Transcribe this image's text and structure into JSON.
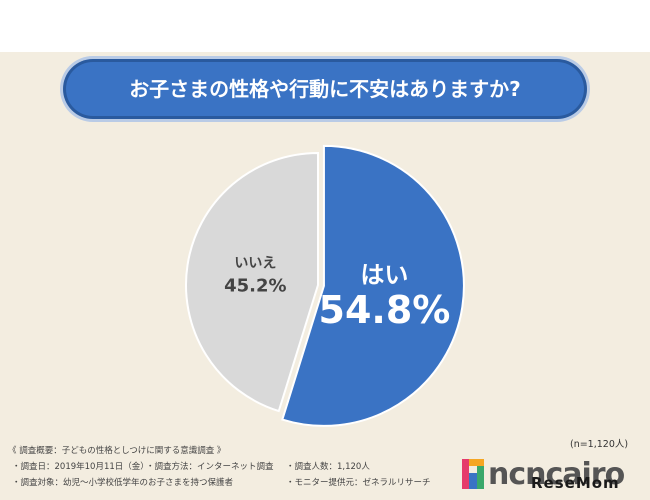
{
  "title": "お子さまの性格や行動に不安はありますか?",
  "chart_data": {
    "type": "pie",
    "title": "お子さまの性格や行動に不安はありますか?",
    "slices": [
      {
        "label": "はい",
        "value": 54.8,
        "display": "54.8%",
        "color": "#3a73c4"
      },
      {
        "label": "いいえ",
        "value": 45.2,
        "display": "45.2%",
        "color": "#d9d9d9"
      }
    ]
  },
  "sample_size": "(n=1,120人)",
  "survey_notes": {
    "heading": "《 調査概要：子どもの性格としつけに関する意識調査 》",
    "date": "・調査日：2019年10月11日（金）",
    "method": "・調査方法：インターネット調査",
    "respondents": "・調査人数：1,120人",
    "target": "・調査対象：幼児〜小学校低学年のお子さまを持つ保護者",
    "provider": "・モニター提供元：ゼネラルリサーチ"
  },
  "logos": {
    "brand": "ncncairo",
    "brand_colors": [
      "#e53b6b",
      "#f5a623",
      "#3aa86b",
      "#3a73c4"
    ],
    "watermark": "ReseMom"
  }
}
